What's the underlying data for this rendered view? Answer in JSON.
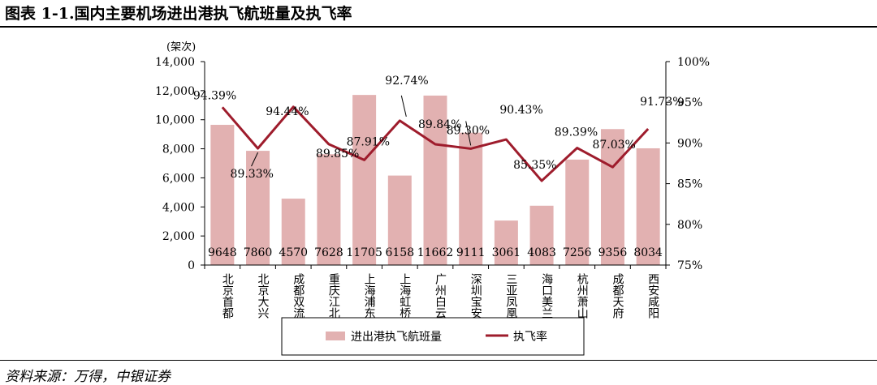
{
  "title": "图表 1-1.国内主要机场进出港执飞航班量及执飞率",
  "source": "资料来源：万得，中银证券",
  "chart_data": {
    "type": "bar+line",
    "unit_label": "(架次)",
    "categories": [
      "北京首都",
      "北京大兴",
      "成都双流",
      "重庆江北",
      "上海浦东",
      "上海虹桥",
      "广州白云",
      "深圳宝安",
      "三亚凤凰",
      "海口美兰",
      "杭州萧山",
      "成都天府",
      "西安咸阳"
    ],
    "series": [
      {
        "name": "进出港执飞航班量",
        "type": "bar",
        "axis": "left",
        "values": [
          9648,
          7860,
          4570,
          7628,
          11705,
          6158,
          11662,
          9111,
          3061,
          4083,
          7256,
          9356,
          8034
        ],
        "labels": [
          "9648",
          "7860",
          "4570",
          "7628",
          "11705",
          "6158",
          "11662",
          "9111",
          "3061",
          "4083",
          "7256",
          "9356",
          "8034"
        ]
      },
      {
        "name": "执飞率",
        "type": "line",
        "axis": "right",
        "values": [
          94.39,
          89.33,
          94.44,
          89.85,
          87.91,
          92.74,
          89.84,
          89.3,
          90.43,
          85.35,
          89.39,
          87.03,
          91.73
        ],
        "labels": [
          "94.39%",
          "89.33%",
          "94.44%",
          "89.85%",
          "87.91%",
          "92.74%",
          "89.84%",
          "89.30%",
          "90.43%",
          "85.35%",
          "89.39%",
          "87.03%",
          "91.73%"
        ]
      }
    ],
    "y_left": {
      "min": 0,
      "max": 14000,
      "ticks": [
        "0",
        "2,000",
        "4,000",
        "6,000",
        "8,000",
        "10,000",
        "12,000",
        "14,000"
      ]
    },
    "y_right": {
      "min": 75,
      "max": 100,
      "ticks": [
        "75%",
        "80%",
        "85%",
        "90%",
        "95%",
        "100%"
      ]
    },
    "grid": false,
    "legend_position": "bottom",
    "colors": {
      "bar": "#e2b1b1",
      "line": "#9e1c2c"
    }
  }
}
